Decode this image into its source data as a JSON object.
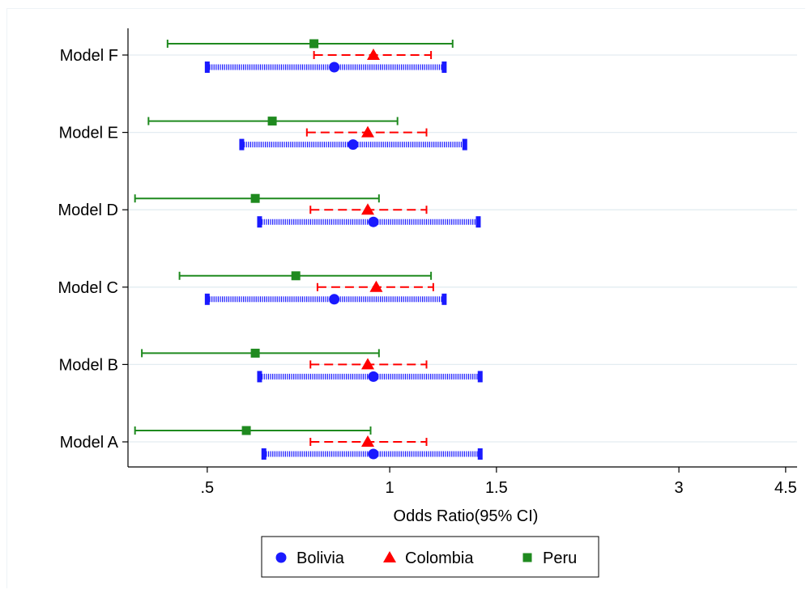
{
  "chart_data": {
    "type": "scatter",
    "xlabel": "Odds Ratio(95% CI)",
    "x_scale": "log",
    "x_ticks": [
      {
        "value": 0.5,
        "label": ".5"
      },
      {
        "value": 1,
        "label": "1"
      },
      {
        "value": 1.5,
        "label": "1.5"
      },
      {
        "value": 3,
        "label": "3"
      },
      {
        "value": 4.5,
        "label": "4.5"
      }
    ],
    "xlim": [
      0.37,
      4.7
    ],
    "categories": [
      "Model F",
      "Model E",
      "Model D",
      "Model C",
      "Model B",
      "Model A"
    ],
    "grid": true,
    "legend_position": "bottom",
    "series": [
      {
        "name": "Bolivia",
        "color": "#1a1aff",
        "marker": "circle",
        "line_style": "dotted",
        "points": [
          {
            "model": "Model F",
            "or": 0.81,
            "lo": 0.5,
            "hi": 1.23
          },
          {
            "model": "Model E",
            "or": 0.87,
            "lo": 0.57,
            "hi": 1.33
          },
          {
            "model": "Model D",
            "or": 0.94,
            "lo": 0.61,
            "hi": 1.4
          },
          {
            "model": "Model C",
            "or": 0.81,
            "lo": 0.5,
            "hi": 1.23
          },
          {
            "model": "Model B",
            "or": 0.94,
            "lo": 0.61,
            "hi": 1.41
          },
          {
            "model": "Model A",
            "or": 0.94,
            "lo": 0.62,
            "hi": 1.41
          }
        ]
      },
      {
        "name": "Colombia",
        "color": "#ff0000",
        "marker": "triangle",
        "line_style": "dashed",
        "points": [
          {
            "model": "Model F",
            "or": 0.94,
            "lo": 0.75,
            "hi": 1.17
          },
          {
            "model": "Model E",
            "or": 0.92,
            "lo": 0.73,
            "hi": 1.15
          },
          {
            "model": "Model D",
            "or": 0.92,
            "lo": 0.74,
            "hi": 1.15
          },
          {
            "model": "Model C",
            "or": 0.95,
            "lo": 0.76,
            "hi": 1.18
          },
          {
            "model": "Model B",
            "or": 0.92,
            "lo": 0.74,
            "hi": 1.15
          },
          {
            "model": "Model A",
            "or": 0.92,
            "lo": 0.74,
            "hi": 1.15
          }
        ]
      },
      {
        "name": "Peru",
        "color": "#1f8a1f",
        "marker": "square",
        "line_style": "solid",
        "points": [
          {
            "model": "Model F",
            "or": 0.75,
            "lo": 0.43,
            "hi": 1.27
          },
          {
            "model": "Model E",
            "or": 0.64,
            "lo": 0.4,
            "hi": 1.03
          },
          {
            "model": "Model D",
            "or": 0.6,
            "lo": 0.38,
            "hi": 0.96
          },
          {
            "model": "Model C",
            "or": 0.7,
            "lo": 0.45,
            "hi": 1.17
          },
          {
            "model": "Model B",
            "or": 0.6,
            "lo": 0.39,
            "hi": 0.96
          },
          {
            "model": "Model A",
            "or": 0.58,
            "lo": 0.38,
            "hi": 0.93
          }
        ]
      }
    ]
  }
}
